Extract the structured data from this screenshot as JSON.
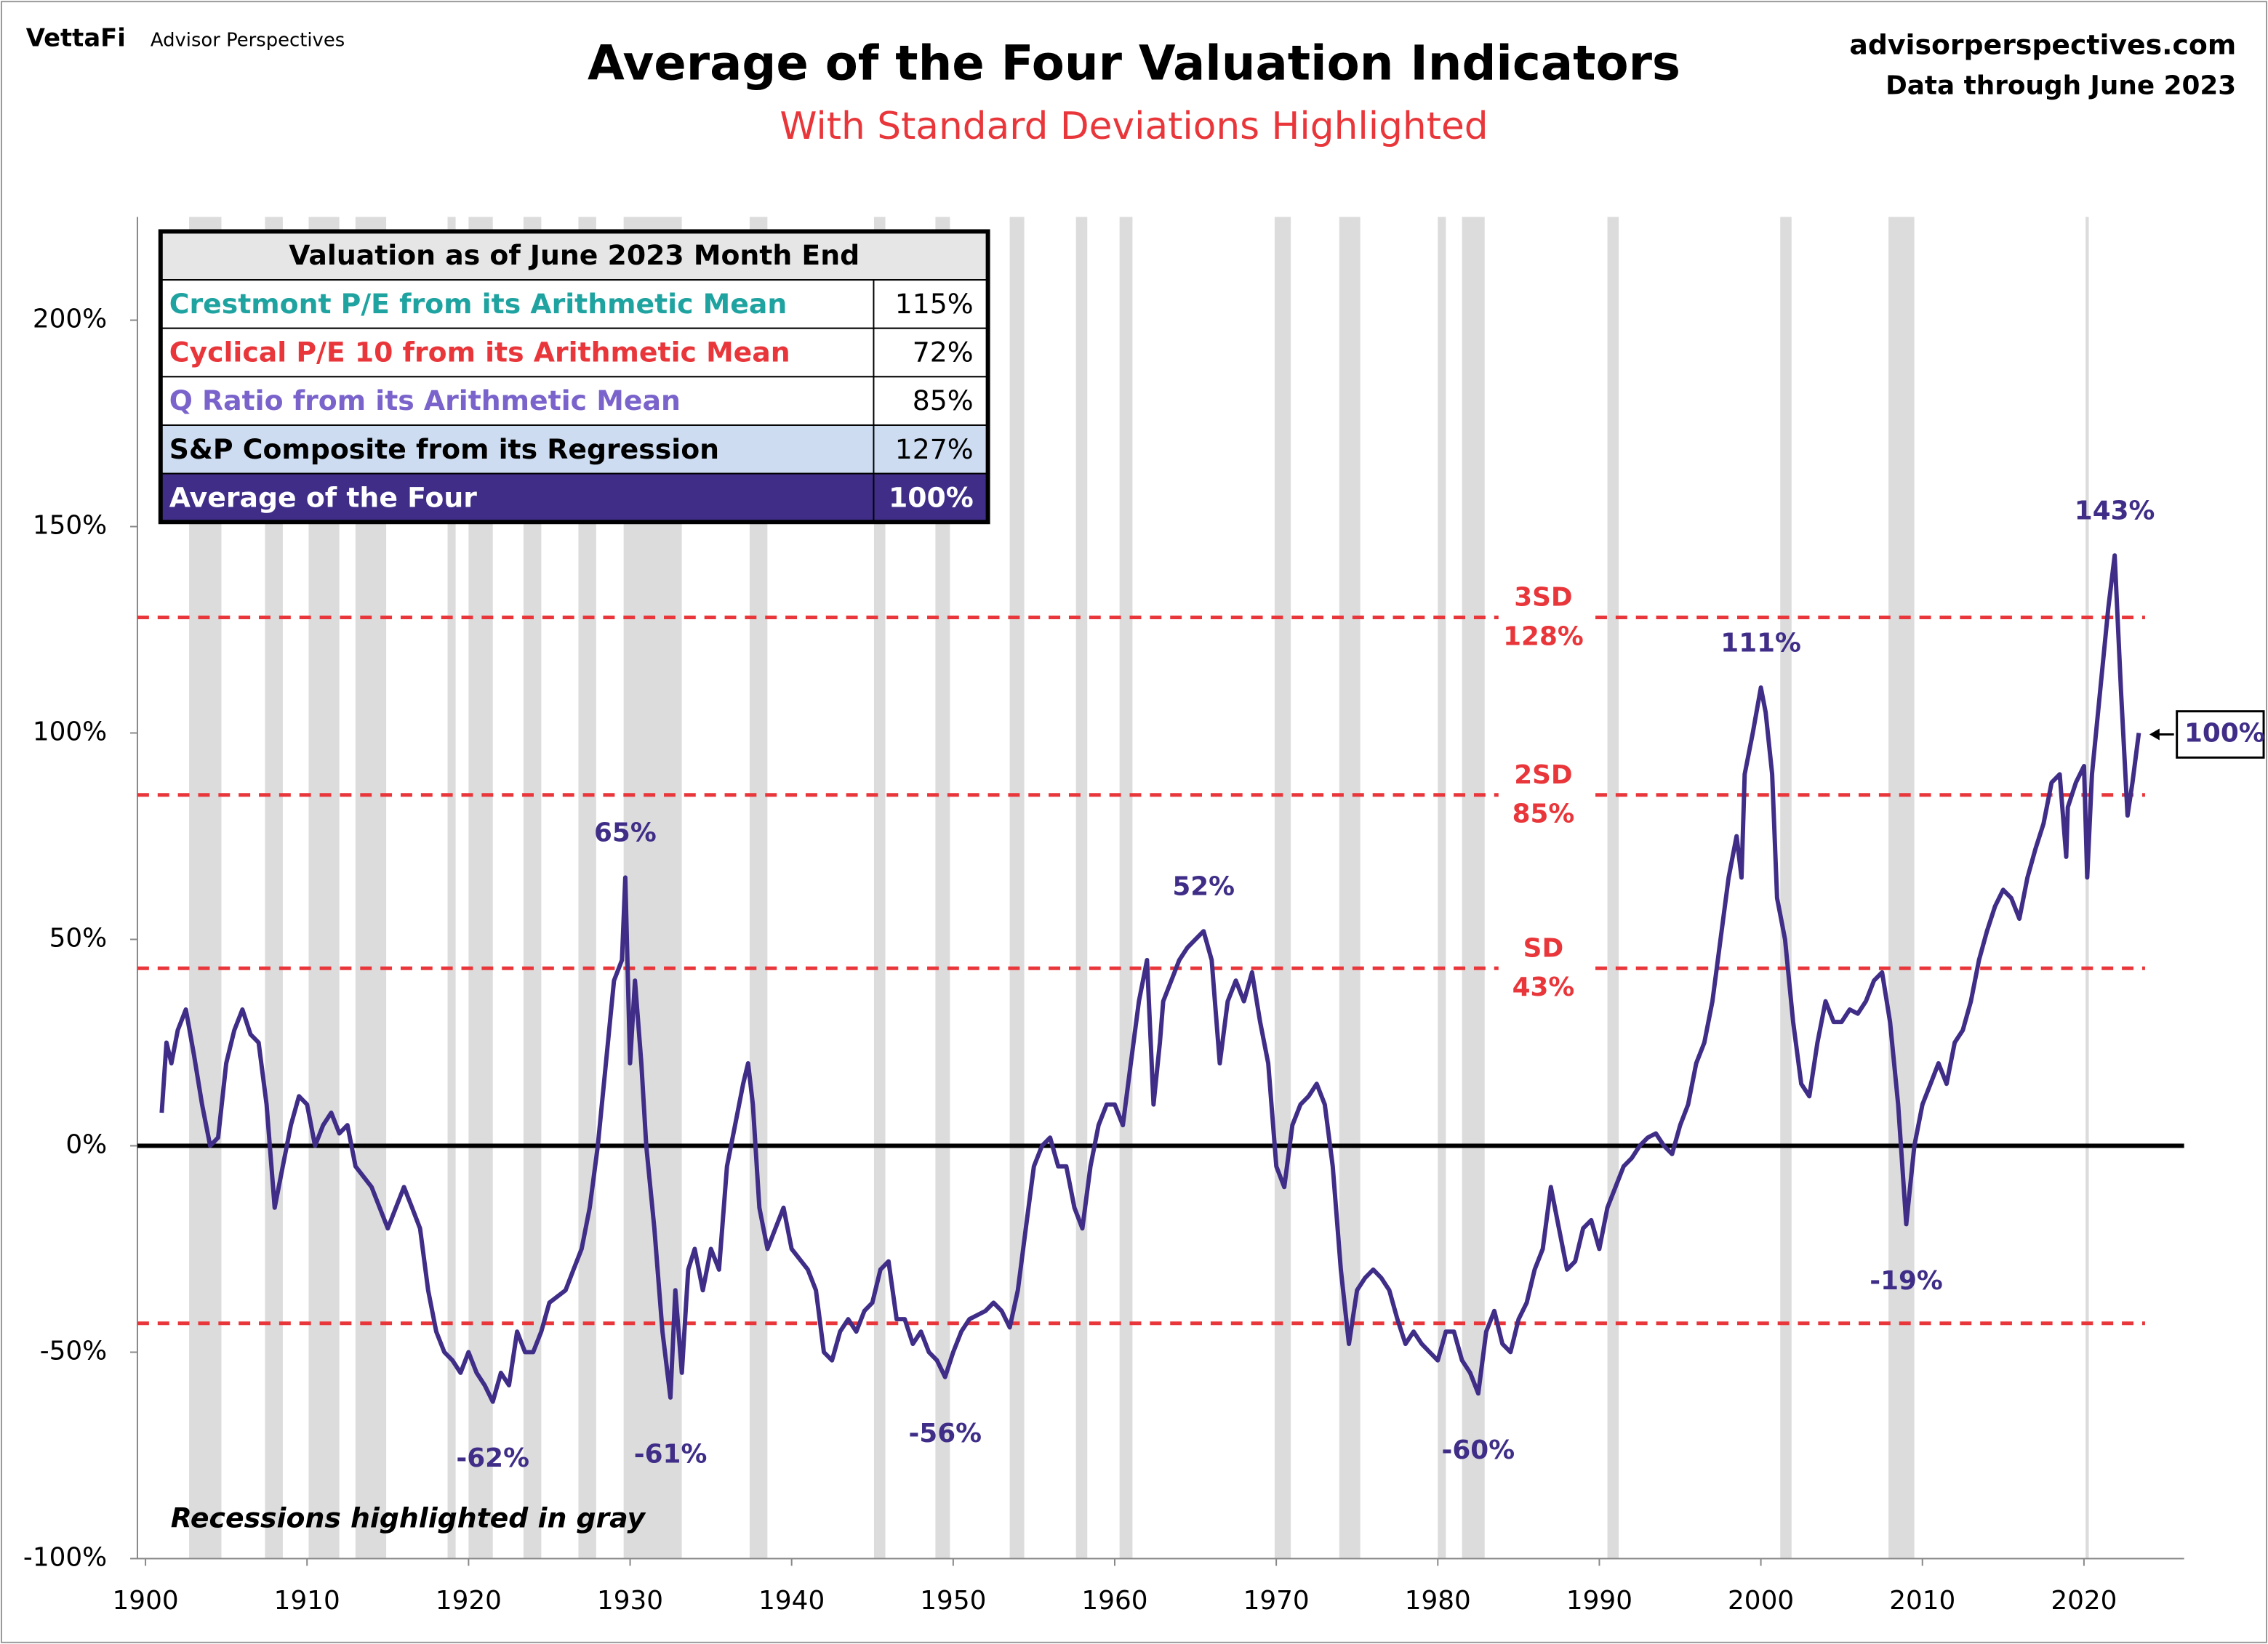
{
  "brand": "VettaFi",
  "brand_sub": "Advisor Perspectives",
  "site": "advisorperspectives.com",
  "data_note": "Data through June 2023",
  "chart_data": {
    "type": "line",
    "title": "Average of the Four Valuation Indicators",
    "subtitle": "With Standard Deviations Highlighted",
    "note": "Recessions highlighted in gray",
    "color": "#3f2d87",
    "xlim": [
      1899.5,
      2026.2
    ],
    "xticks": [
      1900,
      1910,
      1920,
      1930,
      1940,
      1950,
      1960,
      1970,
      1980,
      1990,
      2000,
      2010,
      2020
    ],
    "ylim": [
      -100,
      225
    ],
    "yticks": [
      {
        "value": -100,
        "label": "-100%"
      },
      {
        "value": -50,
        "label": "-50%"
      },
      {
        "value": 0,
        "label": "0%"
      },
      {
        "value": 50,
        "label": "50%"
      },
      {
        "value": 100,
        "label": "100%"
      },
      {
        "value": 150,
        "label": "150%"
      },
      {
        "value": 200,
        "label": "200%"
      }
    ],
    "recessions": [
      [
        1902.7,
        1904.7
      ],
      [
        1907.4,
        1908.5
      ],
      [
        1910.1,
        1912.0
      ],
      [
        1913.0,
        1914.9
      ],
      [
        1918.7,
        1919.2
      ],
      [
        1920.0,
        1921.5
      ],
      [
        1923.4,
        1924.5
      ],
      [
        1926.8,
        1927.9
      ],
      [
        1929.6,
        1933.2
      ],
      [
        1937.4,
        1938.5
      ],
      [
        1945.1,
        1945.8
      ],
      [
        1948.9,
        1949.8
      ],
      [
        1953.5,
        1954.4
      ],
      [
        1957.6,
        1958.3
      ],
      [
        1960.3,
        1961.1
      ],
      [
        1969.9,
        1970.9
      ],
      [
        1973.9,
        1975.2
      ],
      [
        1980.0,
        1980.5
      ],
      [
        1981.5,
        1982.9
      ],
      [
        1990.5,
        1991.2
      ],
      [
        2001.2,
        2001.9
      ],
      [
        2007.9,
        2009.5
      ],
      [
        2020.1,
        2020.3
      ]
    ],
    "reference_lines": [
      {
        "label": "3SD",
        "value": 128,
        "value_label": "128%"
      },
      {
        "label": "2SD",
        "value": 85,
        "value_label": "85%"
      },
      {
        "label": "SD",
        "value": 43,
        "value_label": "43%"
      },
      {
        "value": -43
      }
    ],
    "annotations": [
      {
        "label": "-62%",
        "x": 1921.5,
        "value": -62
      },
      {
        "label": "65%",
        "x": 1929.7,
        "value": 65
      },
      {
        "label": "-61%",
        "x": 1932.5,
        "value": -61
      },
      {
        "label": "-56%",
        "x": 1949.5,
        "value": -56
      },
      {
        "label": "52%",
        "x": 1965.5,
        "value": 52
      },
      {
        "label": "-60%",
        "x": 1982.5,
        "value": -60
      },
      {
        "label": "111%",
        "x": 2000,
        "value": 111
      },
      {
        "label": "-19%",
        "x": 2009,
        "value": -19
      },
      {
        "label": "143%",
        "x": 2021.9,
        "value": 143
      }
    ],
    "callout": {
      "label": "100%",
      "x": 2023.4,
      "value": 100
    },
    "table": {
      "title": "Valuation as of June 2023 Month End",
      "rows": [
        [
          "Crestmont P/E from its Arithmetic Mean",
          "115%"
        ],
        [
          "Cyclical P/E 10 from its Arithmetic Mean",
          "72%"
        ],
        [
          "Q Ratio from its Arithmetic Mean",
          "85%"
        ],
        [
          "S&P Composite from its Regression",
          "127%"
        ],
        [
          "Average of the Four",
          "100%"
        ]
      ],
      "row_colors": [
        "#1fa3a0",
        "#e8363a",
        "#7a64cc",
        "#000000",
        "#ffffff"
      ],
      "row_fills": [
        "#ffffff",
        "#ffffff",
        "#ffffff",
        "#cddcf0",
        "#3f2d87"
      ]
    },
    "x": [
      1901,
      1901.3,
      1901.6,
      1902,
      1902.5,
      1903,
      1903.5,
      1904,
      1904.5,
      1905,
      1905.5,
      1906,
      1906.5,
      1907,
      1907.5,
      1908,
      1908.5,
      1909,
      1909.5,
      1910,
      1910.5,
      1911,
      1911.5,
      1912,
      1912.5,
      1913,
      1914,
      1914.5,
      1915,
      1915.5,
      1916,
      1916.5,
      1917,
      1917.5,
      1918,
      1918.5,
      1919,
      1919.5,
      1920,
      1920.5,
      1921,
      1921.5,
      1922,
      1922.5,
      1923,
      1923.5,
      1924,
      1924.5,
      1925,
      1926,
      1926.5,
      1927,
      1927.5,
      1928,
      1928.5,
      1929,
      1929.5,
      1929.7,
      1930,
      1930.3,
      1930.7,
      1931,
      1931.5,
      1932,
      1932.5,
      1932.8,
      1933.2,
      1933.6,
      1934,
      1934.5,
      1935,
      1935.5,
      1936,
      1936.5,
      1937,
      1937.3,
      1937.6,
      1938,
      1938.5,
      1939,
      1939.5,
      1940,
      1941,
      1941.5,
      1942,
      1942.5,
      1943,
      1943.5,
      1944,
      1944.5,
      1945,
      1945.5,
      1946,
      1946.5,
      1947,
      1947.5,
      1948,
      1948.5,
      1949,
      1949.5,
      1950,
      1950.5,
      1951,
      1952,
      1952.5,
      1953,
      1953.5,
      1954,
      1954.5,
      1955,
      1955.5,
      1956,
      1956.5,
      1957,
      1957.5,
      1958,
      1958.5,
      1959,
      1959.5,
      1960,
      1960.5,
      1961,
      1961.5,
      1962,
      1962.4,
      1962.8,
      1963,
      1963.5,
      1964,
      1964.5,
      1965,
      1965.5,
      1966,
      1966.5,
      1967,
      1967.5,
      1968,
      1968.5,
      1969,
      1969.5,
      1970,
      1970.5,
      1971,
      1971.5,
      1972,
      1972.5,
      1973,
      1973.5,
      1974,
      1974.5,
      1975,
      1975.5,
      1976,
      1976.5,
      1977,
      1977.5,
      1978,
      1978.5,
      1979,
      1979.5,
      1980,
      1980.5,
      1981,
      1981.5,
      1982,
      1982.5,
      1983,
      1983.5,
      1984,
      1984.5,
      1985,
      1985.5,
      1986,
      1986.5,
      1987,
      1987.5,
      1988,
      1988.5,
      1989,
      1989.5,
      1990,
      1990.5,
      1991,
      1991.5,
      1992,
      1992.5,
      1993,
      1993.5,
      1994,
      1994.5,
      1995,
      1995.5,
      1996,
      1996.5,
      1997,
      1997.5,
      1998,
      1998.5,
      1998.8,
      1999,
      1999.5,
      2000,
      2000.3,
      2000.7,
      2001,
      2001.5,
      2002,
      2002.5,
      2003,
      2003.5,
      2004,
      2004.5,
      2005,
      2005.5,
      2006,
      2006.5,
      2007,
      2007.5,
      2008,
      2008.5,
      2009,
      2009.5,
      2010,
      2010.5,
      2011,
      2011.5,
      2012,
      2012.5,
      2013,
      2013.5,
      2014,
      2014.5,
      2015,
      2015.5,
      2016,
      2016.5,
      2017,
      2017.5,
      2018,
      2018.5,
      2018.9,
      2019,
      2019.5,
      2020,
      2020.2,
      2020.5,
      2021,
      2021.5,
      2021.9,
      2022.3,
      2022.7,
      2023,
      2023.4
    ],
    "values": [
      8,
      25,
      20,
      28,
      33,
      22,
      10,
      0,
      2,
      20,
      28,
      33,
      27,
      25,
      10,
      -15,
      -5,
      5,
      12,
      10,
      0,
      5,
      8,
      3,
      5,
      -5,
      -10,
      -15,
      -20,
      -15,
      -10,
      -15,
      -20,
      -35,
      -45,
      -50,
      -52,
      -55,
      -50,
      -55,
      -58,
      -62,
      -55,
      -58,
      -45,
      -50,
      -50,
      -45,
      -38,
      -35,
      -30,
      -25,
      -15,
      0,
      20,
      40,
      45,
      65,
      20,
      40,
      20,
      0,
      -20,
      -45,
      -61,
      -35,
      -55,
      -30,
      -25,
      -35,
      -25,
      -30,
      -5,
      5,
      15,
      20,
      10,
      -15,
      -25,
      -20,
      -15,
      -25,
      -30,
      -35,
      -50,
      -52,
      -45,
      -42,
      -45,
      -40,
      -38,
      -30,
      -28,
      -42,
      -42,
      -48,
      -45,
      -50,
      -52,
      -56,
      -50,
      -45,
      -42,
      -40,
      -38,
      -40,
      -44,
      -35,
      -20,
      -5,
      0,
      2,
      -5,
      -5,
      -15,
      -20,
      -5,
      5,
      10,
      10,
      5,
      20,
      35,
      45,
      10,
      25,
      35,
      40,
      45,
      48,
      50,
      52,
      45,
      20,
      35,
      40,
      35,
      42,
      30,
      20,
      -5,
      -10,
      5,
      10,
      12,
      15,
      10,
      -5,
      -30,
      -48,
      -35,
      -32,
      -30,
      -32,
      -35,
      -42,
      -48,
      -45,
      -48,
      -50,
      -52,
      -45,
      -45,
      -52,
      -55,
      -60,
      -45,
      -40,
      -48,
      -50,
      -42,
      -38,
      -30,
      -25,
      -10,
      -20,
      -30,
      -28,
      -20,
      -18,
      -25,
      -15,
      -10,
      -5,
      -3,
      0,
      2,
      3,
      0,
      -2,
      5,
      10,
      20,
      25,
      35,
      50,
      65,
      75,
      65,
      90,
      100,
      111,
      105,
      90,
      60,
      50,
      30,
      15,
      12,
      25,
      35,
      30,
      30,
      33,
      32,
      35,
      40,
      42,
      30,
      10,
      -19,
      0,
      10,
      15,
      20,
      15,
      25,
      28,
      35,
      45,
      52,
      58,
      62,
      60,
      55,
      65,
      72,
      78,
      88,
      90,
      70,
      82,
      88,
      92,
      65,
      90,
      110,
      130,
      143,
      110,
      80,
      88,
      100
    ]
  }
}
